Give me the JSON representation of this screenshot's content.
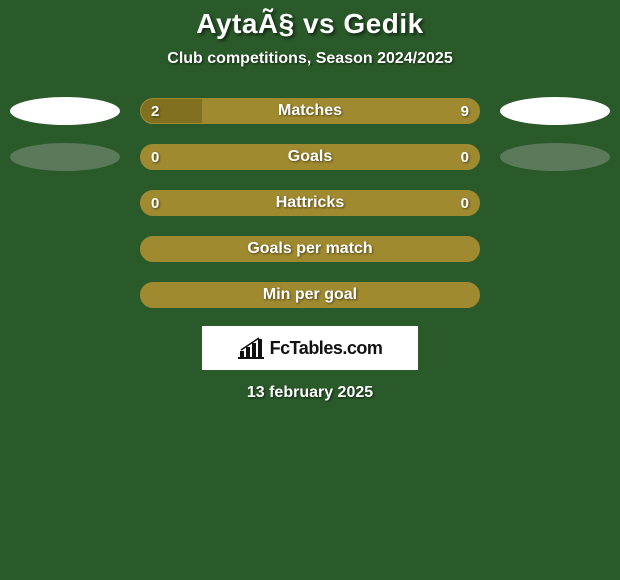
{
  "header": {
    "title": "AytaÃ§ vs Gedik",
    "subtitle": "Club competitions, Season 2024/2025"
  },
  "stats": [
    {
      "label": "Matches",
      "left_value": "2",
      "right_value": "9",
      "left_pct": 18,
      "show_values": true,
      "left_shape": "bright",
      "right_shape": "bright"
    },
    {
      "label": "Goals",
      "left_value": "0",
      "right_value": "0",
      "left_pct": 0,
      "show_values": true,
      "left_shape": "dim",
      "right_shape": "dim"
    },
    {
      "label": "Hattricks",
      "left_value": "0",
      "right_value": "0",
      "left_pct": 0,
      "show_values": true,
      "left_shape": "none",
      "right_shape": "none"
    },
    {
      "label": "Goals per match",
      "left_value": "",
      "right_value": "",
      "left_pct": 0,
      "show_values": false,
      "left_shape": "none",
      "right_shape": "none"
    },
    {
      "label": "Min per goal",
      "left_value": "",
      "right_value": "",
      "left_pct": 0,
      "show_values": false,
      "left_shape": "none",
      "right_shape": "none"
    }
  ],
  "branding": {
    "text": "FcTables.com"
  },
  "footer": {
    "date": "13 february 2025"
  },
  "colors": {
    "background": "#2a5a2a",
    "bar_base": "#a08a30",
    "bar_fill": "#807020",
    "text": "#ffffff",
    "shape_bright": "#ffffff",
    "shape_dim": "#5a7a5a"
  }
}
